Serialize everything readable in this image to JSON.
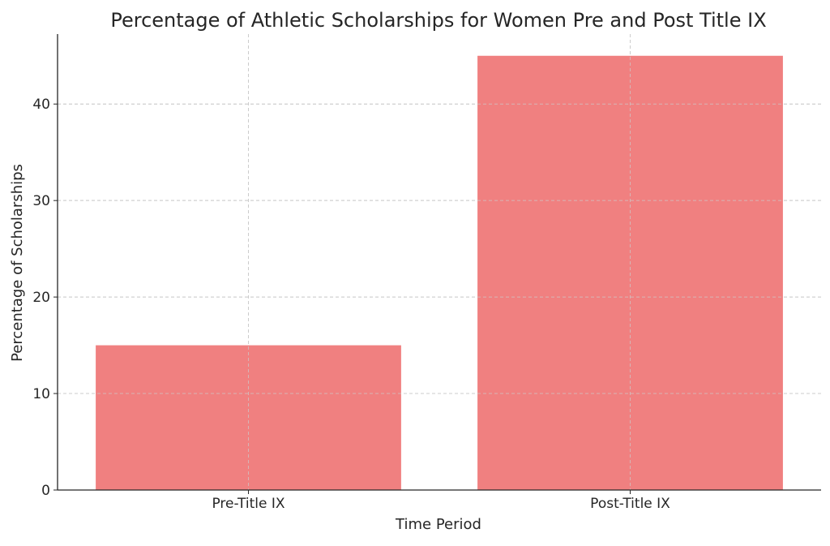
{
  "chart_data": {
    "type": "bar",
    "title": "Percentage of Athletic Scholarships for Women Pre and Post Title IX",
    "xlabel": "Time Period",
    "ylabel": "Percentage of Scholarships",
    "categories": [
      "Pre-Title IX",
      "Post-Title IX"
    ],
    "values": [
      15,
      45
    ],
    "ylim": [
      0,
      47.25
    ],
    "yticks": [
      0,
      10,
      20,
      30,
      40
    ],
    "grid": true,
    "bar_color": "#f08080"
  }
}
